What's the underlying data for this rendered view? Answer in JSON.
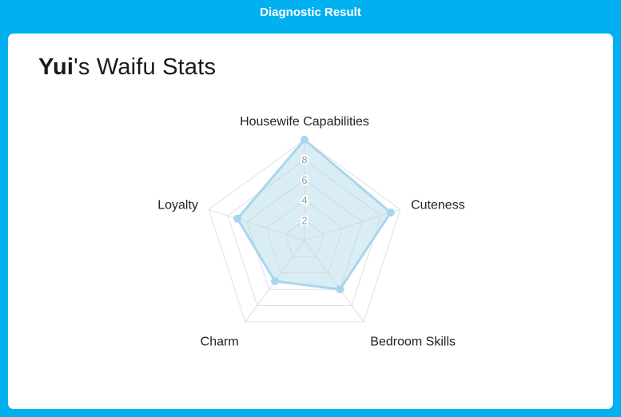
{
  "header": {
    "title": "Diagnostic Result"
  },
  "title": {
    "name": "Yui",
    "suffix": "'s Waifu Stats"
  },
  "theme": {
    "accent": "#00b0f0",
    "card_bg": "#ffffff"
  },
  "chart_data": {
    "type": "radar",
    "title": "Yui's Waifu Stats",
    "categories": [
      "Housewife Capabilities",
      "Cuteness",
      "Bedroom Skills",
      "Charm",
      "Loyalty"
    ],
    "values": [
      10,
      9,
      6,
      5,
      7
    ],
    "scale": {
      "min": 0,
      "max": 10,
      "tick_step": 2,
      "visible_ticks": [
        2,
        4,
        6,
        8
      ]
    },
    "grid": true,
    "legend": "none",
    "colors": {
      "fill": "rgba(173,216,230,0.45)",
      "line": "#a8d6ee",
      "point": "#a8d6ee",
      "grid": "#e0e0e0",
      "tick_text": "#9b9b9b",
      "label_text": "#222222"
    }
  }
}
